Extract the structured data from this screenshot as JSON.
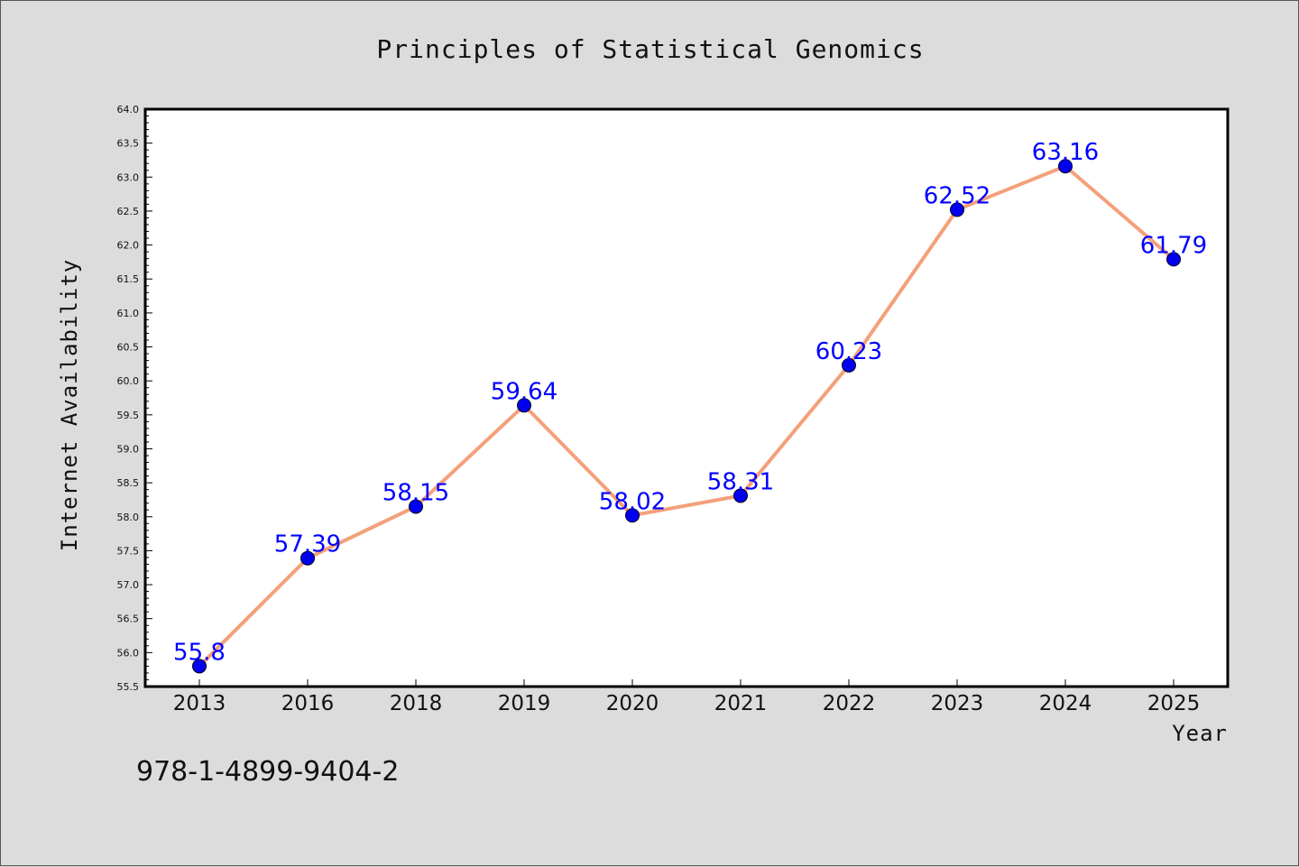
{
  "chart_data": {
    "type": "line",
    "title": "Principles of Statistical Genomics",
    "xlabel": "Year",
    "ylabel": "Internet Availability",
    "categories": [
      "2013",
      "2016",
      "2018",
      "2019",
      "2020",
      "2021",
      "2022",
      "2023",
      "2024",
      "2025"
    ],
    "values": [
      55.8,
      57.39,
      58.15,
      59.64,
      58.02,
      58.31,
      60.23,
      62.52,
      63.16,
      61.79
    ],
    "data_labels": [
      "55.8",
      "57.39",
      "58.15",
      "59.64",
      "58.02",
      "58.31",
      "60.23",
      "62.52",
      "63.16",
      "61.79"
    ],
    "ylim": [
      55.5,
      64.0
    ],
    "yticks": [
      "55.5",
      "56.0",
      "56.5",
      "57.0",
      "57.5",
      "58.0",
      "58.5",
      "59.0",
      "59.5",
      "60.0",
      "60.5",
      "61.0",
      "61.5",
      "62.0",
      "62.5",
      "63.0",
      "63.5",
      "64.0"
    ],
    "grid": false,
    "line_color": "#f4a07a",
    "marker_color": "#0000ee",
    "label_color": "#0000ff"
  },
  "footer": {
    "isbn": "978-1-4899-9404-2"
  }
}
